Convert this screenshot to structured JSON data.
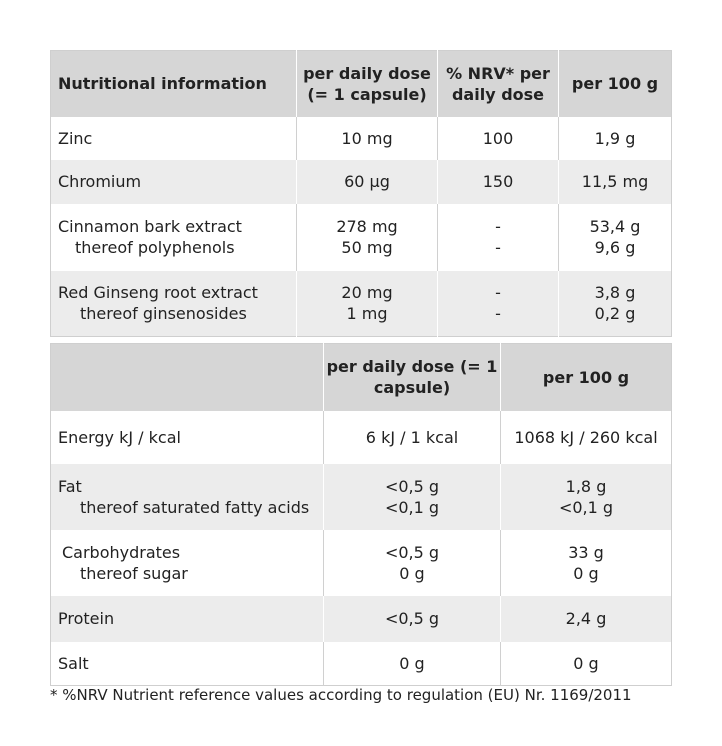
{
  "table1": {
    "headers": [
      "Nutritional information",
      "per daily dose (= 1 capsule)",
      "% NRV* per daily dose",
      "per 100 g"
    ],
    "rows": [
      {
        "label": "Zinc",
        "dose": "10 mg",
        "nrv": "100",
        "per100": "1,9 g"
      },
      {
        "label": "Chromium",
        "dose": "60 µg",
        "nrv": "150",
        "per100": "11,5 mg"
      },
      {
        "label": "Cinnamon bark extract",
        "sub": "thereof polyphenols",
        "dose": "278 mg",
        "dose2": "50 mg",
        "nrv": "-",
        "nrv2": "-",
        "per100": "53,4 g",
        "per100_2": "9,6 g"
      },
      {
        "label": "Red Ginseng root extract",
        "sub": "thereof ginsenosides",
        "dose": "20 mg",
        "dose2": "1 mg",
        "nrv": "-",
        "nrv2": "-",
        "per100": "3,8 g",
        "per100_2": "0,2 g"
      }
    ]
  },
  "table2": {
    "headers": [
      "",
      "per daily dose (= 1 capsule)",
      "per 100 g"
    ],
    "rows": [
      {
        "label": "Energy kJ / kcal",
        "dose": "6 kJ / 1 kcal",
        "per100": "1068 kJ / 260 kcal"
      },
      {
        "label": "Fat",
        "sub": "thereof saturated fatty acids",
        "dose": "<0,5 g",
        "dose2": "<0,1 g",
        "per100": "1,8 g",
        "per100_2": "<0,1 g"
      },
      {
        "label": "Carbohydrates",
        "sub": "thereof sugar",
        "dose": "<0,5 g",
        "dose2": "0 g",
        "per100": "33 g",
        "per100_2": "0 g"
      },
      {
        "label": "Protein",
        "dose": "<0,5 g",
        "per100": "2,4 g"
      },
      {
        "label": "Salt",
        "dose": "0 g",
        "per100": "0 g"
      }
    ]
  },
  "footnote": "* %NRV Nutrient reference values according to regulation (EU) Nr. 1169/2011"
}
